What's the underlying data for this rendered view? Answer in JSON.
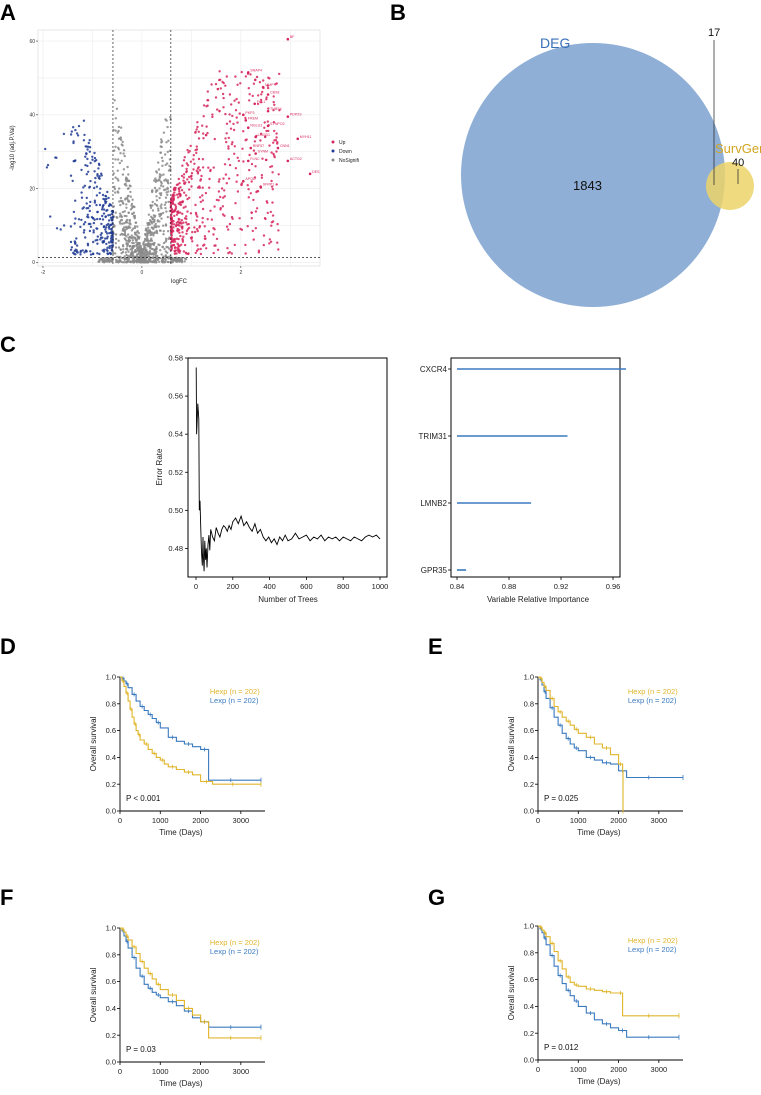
{
  "panel_labels": [
    "A",
    "B",
    "C",
    "D",
    "E",
    "F",
    "G"
  ],
  "colors": {
    "up": "#d6275e",
    "down": "#1f3a93",
    "ns": "#8a8a8a",
    "hexp": "#e0b52b",
    "lexp": "#3a7abf",
    "deg": "#8fafd6",
    "survgene": "#ecd36a",
    "bar": "#3a7abf"
  },
  "chart_data": [
    {
      "id": "A",
      "type": "scatter",
      "title": "",
      "xlabel": "logFC",
      "ylabel": "-log10 (adj.P.Val)",
      "xlim": [
        -2.1,
        3.6
      ],
      "ylim": [
        -1,
        63
      ],
      "xticks": [
        "-2",
        "0",
        "2"
      ],
      "yticks": [
        "0",
        "20",
        "40",
        "60"
      ],
      "thresholds": {
        "logfc": [
          -0.585,
          0.585
        ],
        "p": 1.3
      },
      "legend": [
        {
          "name": "Up",
          "color": "#d6275e"
        },
        {
          "name": "Down",
          "color": "#1f3a93"
        },
        {
          "name": "NoSignifi",
          "color": "#8a8a8a"
        }
      ],
      "annotations": [
        {
          "label": "BF",
          "x": 2.95,
          "y": 60.5
        },
        {
          "label": "SNAP4",
          "x": 2.15,
          "y": 51.5
        },
        {
          "label": "MMP",
          "x": 2.45,
          "y": 47.5
        },
        {
          "label": "CBX8",
          "x": 2.55,
          "y": 45.5
        },
        {
          "label": "FHL1",
          "x": 2.28,
          "y": 43
        },
        {
          "label": "THBS4",
          "x": 2.55,
          "y": 41
        },
        {
          "label": "PKP3",
          "x": 2.05,
          "y": 40
        },
        {
          "label": "PDP2S",
          "x": 2.95,
          "y": 39.5
        },
        {
          "label": "FREM",
          "x": 2.1,
          "y": 38.5
        },
        {
          "label": "NGLU3",
          "x": 2.15,
          "y": 36.5
        },
        {
          "label": "SYNPO2",
          "x": 2.55,
          "y": 37
        },
        {
          "label": "LMOD1",
          "x": 2.3,
          "y": 34
        },
        {
          "label": "MYH11",
          "x": 3.15,
          "y": 33.5
        },
        {
          "label": "RNF57",
          "x": 2.2,
          "y": 31
        },
        {
          "label": "CNN1",
          "x": 2.75,
          "y": 31
        },
        {
          "label": "SYNM",
          "x": 2.3,
          "y": 29.5
        },
        {
          "label": "FLNC",
          "x": 2.15,
          "y": 27.5
        },
        {
          "label": "ACTG2",
          "x": 2.95,
          "y": 27.5
        },
        {
          "label": "DES",
          "x": 3.4,
          "y": 24
        },
        {
          "label": "APOD",
          "x": 2.05,
          "y": 22
        },
        {
          "label": "SFRP1",
          "x": 2.4,
          "y": 20.5
        }
      ]
    },
    {
      "id": "B",
      "type": "venn",
      "sets": [
        {
          "name": "DEG",
          "only": 1843
        },
        {
          "name": "SurvGene",
          "only": 40
        }
      ],
      "overlap": 17
    },
    {
      "id": "C1",
      "type": "line",
      "title": "",
      "xlabel": "Number of Trees",
      "ylabel": "Error Rate",
      "xlim": [
        0,
        1000
      ],
      "ylim": [
        0.465,
        0.58
      ],
      "xticks": [
        "0",
        "200",
        "400",
        "600",
        "800",
        "1000"
      ],
      "yticks": [
        "0.48",
        "0.50",
        "0.52",
        "0.54",
        "0.56",
        "0.58"
      ],
      "x": [
        1,
        3,
        6,
        10,
        15,
        18,
        22,
        26,
        30,
        34,
        38,
        40,
        44,
        48,
        52,
        56,
        60,
        65,
        70,
        75,
        80,
        90,
        100,
        110,
        120,
        130,
        140,
        150,
        160,
        170,
        180,
        190,
        200,
        215,
        230,
        245,
        260,
        275,
        290,
        305,
        320,
        335,
        350,
        365,
        380,
        395,
        410,
        425,
        440,
        455,
        470,
        485,
        500,
        520,
        540,
        560,
        580,
        600,
        620,
        640,
        660,
        680,
        700,
        720,
        740,
        760,
        780,
        800,
        820,
        840,
        860,
        880,
        900,
        920,
        940,
        960,
        980,
        1000
      ],
      "values": [
        0.575,
        0.54,
        0.546,
        0.556,
        0.548,
        0.5,
        0.505,
        0.49,
        0.478,
        0.471,
        0.486,
        0.476,
        0.468,
        0.484,
        0.474,
        0.48,
        0.47,
        0.482,
        0.487,
        0.479,
        0.49,
        0.486,
        0.484,
        0.491,
        0.488,
        0.486,
        0.49,
        0.492,
        0.491,
        0.489,
        0.492,
        0.49,
        0.494,
        0.496,
        0.493,
        0.497,
        0.492,
        0.494,
        0.491,
        0.489,
        0.493,
        0.488,
        0.49,
        0.486,
        0.484,
        0.486,
        0.483,
        0.485,
        0.482,
        0.486,
        0.484,
        0.487,
        0.484,
        0.485,
        0.488,
        0.485,
        0.486,
        0.487,
        0.484,
        0.486,
        0.485,
        0.487,
        0.484,
        0.486,
        0.485,
        0.486,
        0.484,
        0.486,
        0.485,
        0.484,
        0.486,
        0.485,
        0.484,
        0.486,
        0.487,
        0.486,
        0.487,
        0.485
      ]
    },
    {
      "id": "C2",
      "type": "bar",
      "orientation": "horizontal",
      "xlabel": "Variable Relative Importance",
      "categories": [
        "CXCR4",
        "TRIM31",
        "LMNB2",
        "GPR35"
      ],
      "values": [
        0.97,
        0.925,
        0.897,
        0.847
      ],
      "xlim": [
        0.84,
        0.98
      ],
      "xticks": [
        "0.84",
        "0.88",
        "0.92",
        "0.96"
      ],
      "baseline": 0.84
    },
    {
      "id": "D",
      "type": "line",
      "subtype": "km",
      "xlabel": "Time (Days)",
      "ylabel": "Overall survival",
      "xlim": [
        0,
        3600
      ],
      "ylim": [
        0,
        1
      ],
      "xticks": [
        "0",
        "1000",
        "2000",
        "3000"
      ],
      "yticks": [
        "0.0",
        "0.2",
        "0.4",
        "0.6",
        "0.8",
        "1.0"
      ],
      "pvalue": "P < 0.001",
      "series": [
        {
          "name": "Hexp (n = 202)",
          "color": "#e0b52b",
          "x": [
            0,
            50,
            100,
            150,
            200,
            250,
            300,
            350,
            400,
            450,
            500,
            600,
            700,
            800,
            900,
            1000,
            1100,
            1200,
            1400,
            1600,
            1800,
            2000,
            2300,
            2600,
            3000,
            3500
          ],
          "values": [
            1,
            0.97,
            0.93,
            0.88,
            0.82,
            0.76,
            0.7,
            0.65,
            0.6,
            0.57,
            0.53,
            0.5,
            0.46,
            0.43,
            0.4,
            0.38,
            0.35,
            0.33,
            0.31,
            0.29,
            0.27,
            0.22,
            0.2,
            0.2,
            0.2,
            0.2
          ]
        },
        {
          "name": "Lexp (n = 202)",
          "color": "#3a7abf",
          "x": [
            0,
            50,
            100,
            150,
            200,
            300,
            400,
            500,
            600,
            700,
            800,
            900,
            1000,
            1200,
            1400,
            1600,
            1800,
            2000,
            2200,
            2500,
            3000,
            3500
          ],
          "values": [
            1,
            0.99,
            0.97,
            0.95,
            0.92,
            0.87,
            0.82,
            0.78,
            0.75,
            0.72,
            0.69,
            0.66,
            0.62,
            0.55,
            0.52,
            0.5,
            0.48,
            0.46,
            0.23,
            0.23,
            0.23,
            0.23
          ]
        }
      ]
    },
    {
      "id": "E",
      "type": "line",
      "subtype": "km",
      "xlabel": "Time (Days)",
      "ylabel": "Overall survival",
      "xlim": [
        0,
        3600
      ],
      "ylim": [
        0,
        1
      ],
      "xticks": [
        "0",
        "1000",
        "2000",
        "3000"
      ],
      "yticks": [
        "0.0",
        "0.2",
        "0.4",
        "0.6",
        "0.8",
        "1.0"
      ],
      "pvalue": "P = 0.025",
      "series": [
        {
          "name": "Hexp (n = 202)",
          "color": "#e0b52b",
          "x": [
            0,
            50,
            100,
            150,
            200,
            300,
            400,
            500,
            600,
            700,
            800,
            900,
            1000,
            1200,
            1400,
            1600,
            1800,
            2000,
            2100,
            2110
          ],
          "values": [
            1,
            0.99,
            0.96,
            0.93,
            0.9,
            0.84,
            0.78,
            0.74,
            0.7,
            0.67,
            0.64,
            0.61,
            0.58,
            0.55,
            0.5,
            0.47,
            0.42,
            0.35,
            0.3,
            0.0
          ]
        },
        {
          "name": "Lexp (n = 202)",
          "color": "#3a7abf",
          "x": [
            0,
            50,
            100,
            150,
            200,
            300,
            400,
            500,
            600,
            700,
            800,
            900,
            1000,
            1200,
            1400,
            1600,
            1800,
            2000,
            2200,
            2500,
            3000,
            3600
          ],
          "values": [
            1,
            0.98,
            0.94,
            0.89,
            0.84,
            0.77,
            0.7,
            0.64,
            0.58,
            0.54,
            0.5,
            0.47,
            0.45,
            0.4,
            0.38,
            0.36,
            0.35,
            0.3,
            0.25,
            0.25,
            0.25,
            0.25
          ]
        }
      ]
    },
    {
      "id": "F",
      "type": "line",
      "subtype": "km",
      "xlabel": "Time (Days)",
      "ylabel": "Overall survival",
      "xlim": [
        0,
        3600
      ],
      "ylim": [
        0,
        1
      ],
      "xticks": [
        "0",
        "1000",
        "2000",
        "3000"
      ],
      "yticks": [
        "0.0",
        "0.2",
        "0.4",
        "0.6",
        "0.8",
        "1.0"
      ],
      "pvalue": "P = 0.03",
      "series": [
        {
          "name": "Hexp (n = 202)",
          "color": "#e0b52b",
          "x": [
            0,
            50,
            100,
            150,
            200,
            300,
            400,
            500,
            600,
            700,
            800,
            900,
            1000,
            1200,
            1400,
            1600,
            1800,
            2000,
            2200,
            2500,
            3000,
            3500
          ],
          "values": [
            1,
            0.99,
            0.97,
            0.94,
            0.91,
            0.86,
            0.81,
            0.75,
            0.7,
            0.66,
            0.62,
            0.58,
            0.54,
            0.5,
            0.46,
            0.4,
            0.35,
            0.3,
            0.18,
            0.18,
            0.18,
            0.18
          ]
        },
        {
          "name": "Lexp (n = 202)",
          "color": "#3a7abf",
          "x": [
            0,
            50,
            100,
            150,
            200,
            300,
            400,
            500,
            600,
            700,
            800,
            900,
            1000,
            1200,
            1400,
            1600,
            1800,
            2000,
            2200,
            2500,
            3000,
            3500
          ],
          "values": [
            1,
            0.98,
            0.94,
            0.9,
            0.85,
            0.78,
            0.7,
            0.64,
            0.58,
            0.55,
            0.52,
            0.5,
            0.48,
            0.45,
            0.42,
            0.38,
            0.33,
            0.3,
            0.26,
            0.26,
            0.26,
            0.26
          ]
        }
      ]
    },
    {
      "id": "G",
      "type": "line",
      "subtype": "km",
      "xlabel": "Time (Days)",
      "ylabel": "Overall survival",
      "xlim": [
        0,
        3600
      ],
      "ylim": [
        0,
        1
      ],
      "xticks": [
        "0",
        "1000",
        "2000",
        "3000"
      ],
      "yticks": [
        "0.0",
        "0.2",
        "0.4",
        "0.6",
        "0.8",
        "1.0"
      ],
      "pvalue": "P = 0.012",
      "series": [
        {
          "name": "Hexp (n = 202)",
          "color": "#e0b52b",
          "x": [
            0,
            50,
            100,
            150,
            200,
            300,
            400,
            500,
            600,
            700,
            800,
            900,
            1000,
            1200,
            1400,
            1600,
            1800,
            2000,
            2100,
            2500,
            3000,
            3500
          ],
          "values": [
            1,
            0.99,
            0.97,
            0.95,
            0.92,
            0.87,
            0.81,
            0.74,
            0.68,
            0.62,
            0.58,
            0.56,
            0.55,
            0.53,
            0.52,
            0.51,
            0.5,
            0.5,
            0.33,
            0.33,
            0.33,
            0.33
          ]
        },
        {
          "name": "Lexp (n = 202)",
          "color": "#3a7abf",
          "x": [
            0,
            50,
            100,
            150,
            200,
            300,
            400,
            500,
            600,
            700,
            800,
            900,
            1000,
            1200,
            1400,
            1600,
            1800,
            2000,
            2200,
            2500,
            3000,
            3500
          ],
          "values": [
            1,
            0.98,
            0.95,
            0.91,
            0.86,
            0.78,
            0.7,
            0.63,
            0.57,
            0.52,
            0.48,
            0.44,
            0.4,
            0.35,
            0.3,
            0.27,
            0.24,
            0.22,
            0.17,
            0.17,
            0.17,
            0.17
          ]
        }
      ]
    }
  ]
}
